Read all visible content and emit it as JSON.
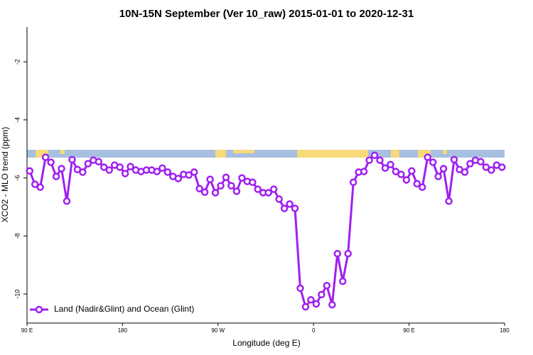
{
  "chart_data": {
    "type": "line",
    "title": "10N-15N September (Ver 10_raw)   2015-01-01 to 2020-12-31",
    "xlabel": "Longitude (deg E)",
    "ylabel": "XCO2 - MLO trend (ppm)",
    "x": [
      92.5,
      97.5,
      102.5,
      107.5,
      112.5,
      117.5,
      122.5,
      127.5,
      132.5,
      137.5,
      142.5,
      147.5,
      152.5,
      157.5,
      162.5,
      167.5,
      172.5,
      177.5,
      182.5,
      187.5,
      192.5,
      197.5,
      202.5,
      207.5,
      212.5,
      217.5,
      222.5,
      227.5,
      232.5,
      237.5,
      242.5,
      247.5,
      252.5,
      257.5,
      262.5,
      267.5,
      272.5,
      277.5,
      282.5,
      287.5,
      292.5,
      297.5,
      302.5,
      307.5,
      312.5,
      317.5,
      322.5,
      327.5,
      332.5,
      337.5,
      342.5,
      347.5,
      352.5,
      357.5,
      362.5,
      367.5,
      372.5,
      377.5,
      382.5,
      387.5,
      392.5,
      397.5,
      402.5,
      407.5,
      412.5,
      417.5,
      422.5,
      427.5,
      432.5,
      437.5,
      442.5,
      447.5,
      452.5,
      457.5,
      462.5,
      467.5,
      472.5,
      477.5,
      482.5,
      487.5,
      492.5,
      497.5,
      502.5,
      507.5,
      512.5,
      517.5,
      522.5,
      527.5,
      532.5,
      537.5
    ],
    "series": [
      {
        "name": "Land (Nadir&Glint) and Ocean (Glint)",
        "color": "#a020f0",
        "values": [
          -5.76,
          -6.22,
          -6.32,
          -5.29,
          -5.46,
          -5.95,
          -5.68,
          -6.8,
          -5.37,
          -5.71,
          -5.8,
          -5.51,
          -5.39,
          -5.44,
          -5.63,
          -5.73,
          -5.56,
          -5.63,
          -5.85,
          -5.61,
          -5.73,
          -5.78,
          -5.73,
          -5.73,
          -5.78,
          -5.66,
          -5.8,
          -5.95,
          -6.02,
          -5.88,
          -5.9,
          -5.8,
          -6.37,
          -6.49,
          -6.05,
          -6.51,
          -6.27,
          -5.98,
          -6.27,
          -6.46,
          -6.0,
          -6.12,
          -6.15,
          -6.39,
          -6.51,
          -6.51,
          -6.39,
          -6.73,
          -7.05,
          -6.9,
          -7.05,
          -9.8,
          -10.44,
          -10.2,
          -10.34,
          -10.02,
          -9.71,
          -10.37,
          -8.61,
          -9.56,
          -8.61,
          -6.15,
          -5.8,
          -5.78,
          -5.39,
          -5.22,
          -5.39,
          -5.66,
          -5.54,
          -5.78,
          -5.88,
          -6.07,
          -5.76,
          -6.2,
          -6.32,
          -5.29,
          -5.46,
          -5.95,
          -5.68,
          -6.8,
          -5.37,
          -5.71,
          -5.8,
          -5.51,
          -5.39,
          -5.44,
          -5.63,
          -5.73,
          -5.56,
          -5.63
        ]
      }
    ],
    "xlim": [
      90,
      540
    ],
    "xticks": [
      {
        "value": 90,
        "label": "90 E"
      },
      180,
      {
        "value": 270,
        "label": "90 W"
      },
      {
        "value": 360,
        "label": "0"
      },
      {
        "value": 450,
        "label": "90 E"
      },
      {
        "value": 540,
        "label": "180"
      }
    ],
    "ylim": [
      -11,
      -0.8
    ],
    "yticks": [
      -10,
      -8,
      -6,
      -4,
      -2
    ],
    "legend": "lower left"
  }
}
